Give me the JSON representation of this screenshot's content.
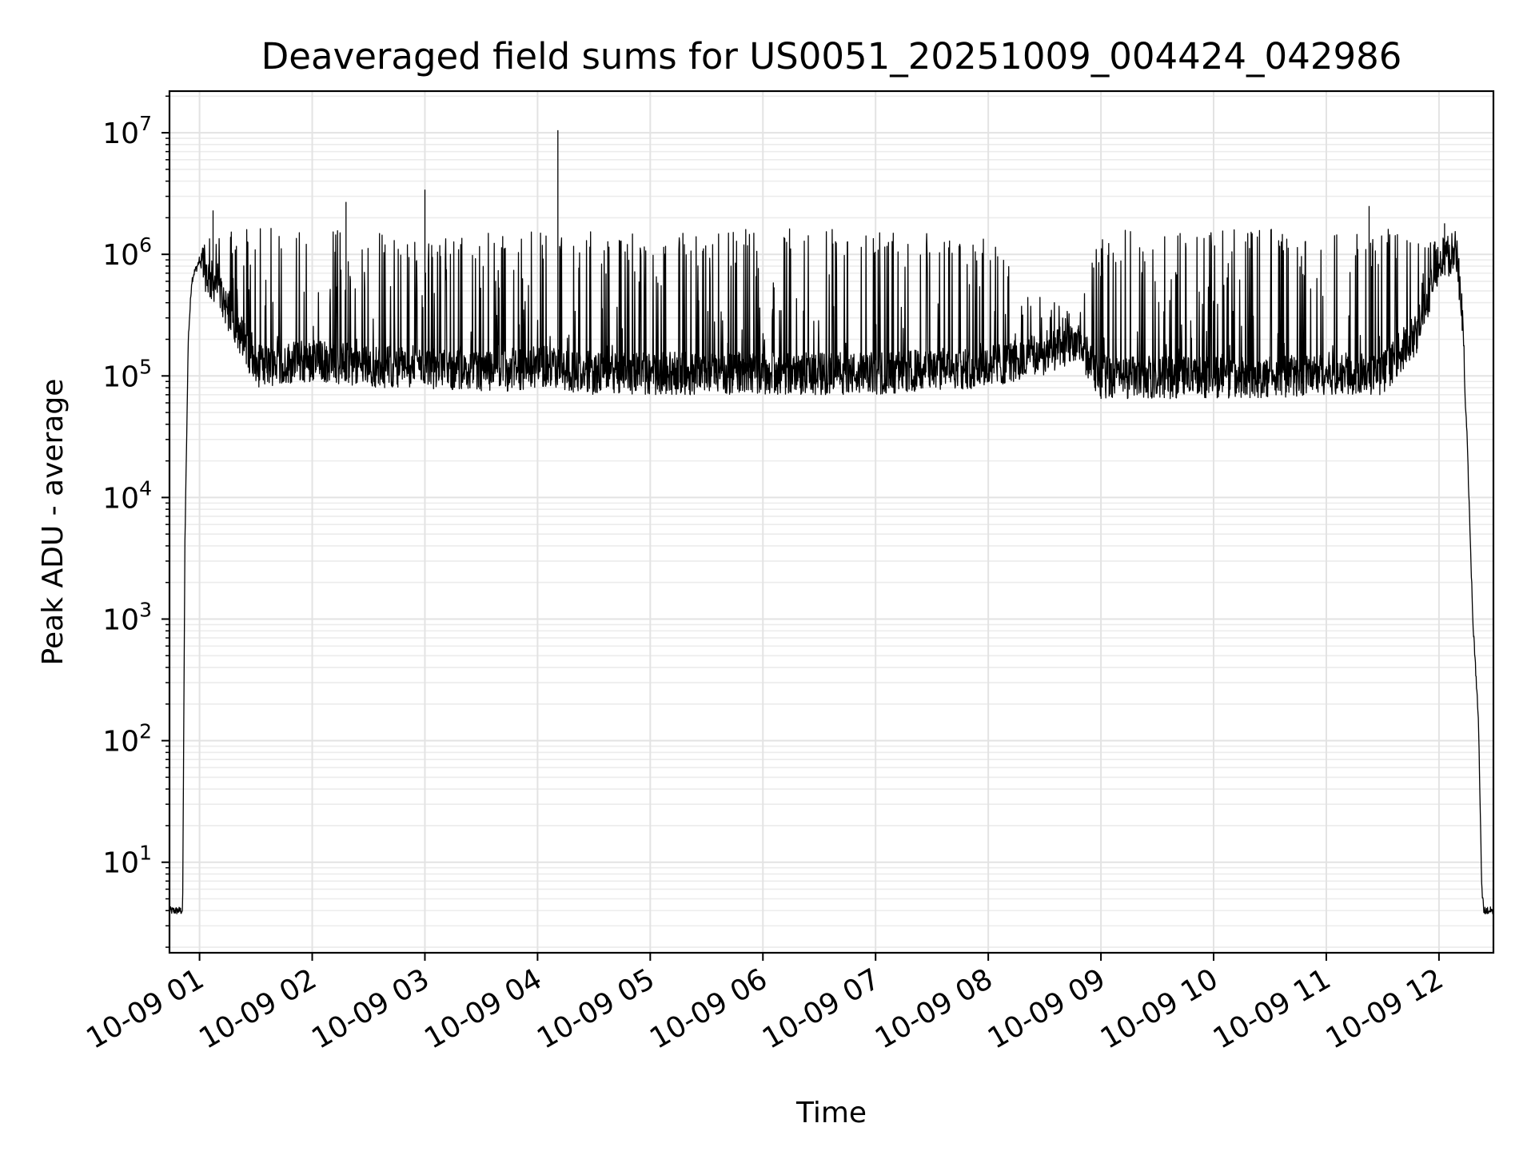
{
  "chart_data": {
    "type": "line",
    "title": "Deaveraged field sums for US0051_20251009_004424_042986",
    "xlabel": "Time",
    "ylabel": "Peak ADU - average",
    "yscale": "log",
    "ylim": [
      1.8,
      22000000
    ],
    "xlim": [
      "10-09 00:44",
      "10-09 12:29"
    ],
    "grid": true,
    "x_tick_labels": [
      "10-09 01",
      "10-09 02",
      "10-09 03",
      "10-09 04",
      "10-09 05",
      "10-09 06",
      "10-09 07",
      "10-09 08",
      "10-09 09",
      "10-09 10",
      "10-09 11",
      "10-09 12"
    ],
    "y_ticks": [
      {
        "base": "10",
        "exp": "1",
        "value": 10
      },
      {
        "base": "10",
        "exp": "2",
        "value": 100
      },
      {
        "base": "10",
        "exp": "3",
        "value": 1000
      },
      {
        "base": "10",
        "exp": "4",
        "value": 10000
      },
      {
        "base": "10",
        "exp": "5",
        "value": 100000
      },
      {
        "base": "10",
        "exp": "6",
        "value": 1000000
      },
      {
        "base": "10",
        "exp": "7",
        "value": 10000000
      }
    ],
    "series": [
      {
        "name": "field sums",
        "color": "#000000",
        "x_hours": [
          0.74,
          0.85,
          0.87,
          0.9,
          0.93,
          0.95,
          0.98,
          1.0,
          1.05,
          1.1,
          1.15,
          1.2,
          1.5,
          2.0,
          2.5,
          3.0,
          3.5,
          4.0,
          4.5,
          5.0,
          5.5,
          6.0,
          6.5,
          7.0,
          7.5,
          8.0,
          8.5,
          8.8,
          9.0,
          9.5,
          10.0,
          10.5,
          11.0,
          11.5,
          11.8,
          12.0,
          12.15,
          12.2,
          12.25,
          12.3,
          12.35,
          12.38,
          12.4,
          12.47
        ],
        "envelope_low": [
          4,
          4,
          4000,
          200000,
          600000,
          700000,
          800000,
          900000,
          500000,
          400000,
          400000,
          300000,
          80000,
          90000,
          80000,
          80000,
          70000,
          80000,
          70000,
          70000,
          70000,
          70000,
          70000,
          70000,
          75000,
          80000,
          100000,
          120000,
          65000,
          65000,
          65000,
          65000,
          70000,
          70000,
          150000,
          600000,
          700000,
          300000,
          30000,
          1000,
          150,
          6,
          4,
          4
        ],
        "envelope_high": [
          4,
          4,
          4000,
          200000,
          600000,
          800000,
          950000,
          1100000,
          1500000,
          1400000,
          1400000,
          1400000,
          1500000,
          1500000,
          1400000,
          1300000,
          1400000,
          1400000,
          1400000,
          1400000,
          1400000,
          1500000,
          1500000,
          1400000,
          1400000,
          1300000,
          400000,
          300000,
          1400000,
          1500000,
          1500000,
          1500000,
          1500000,
          1500000,
          1400000,
          1300000,
          1200000,
          700000,
          30000,
          1000,
          150,
          6,
          4,
          4
        ],
        "spikes": [
          {
            "x_hours": 1.12,
            "value": 2300000
          },
          {
            "x_hours": 2.3,
            "value": 2700000
          },
          {
            "x_hours": 3.0,
            "value": 3400000
          },
          {
            "x_hours": 4.18,
            "value": 10500000
          },
          {
            "x_hours": 11.38,
            "value": 2500000
          },
          {
            "x_hours": 12.05,
            "value": 1800000
          }
        ]
      }
    ]
  }
}
